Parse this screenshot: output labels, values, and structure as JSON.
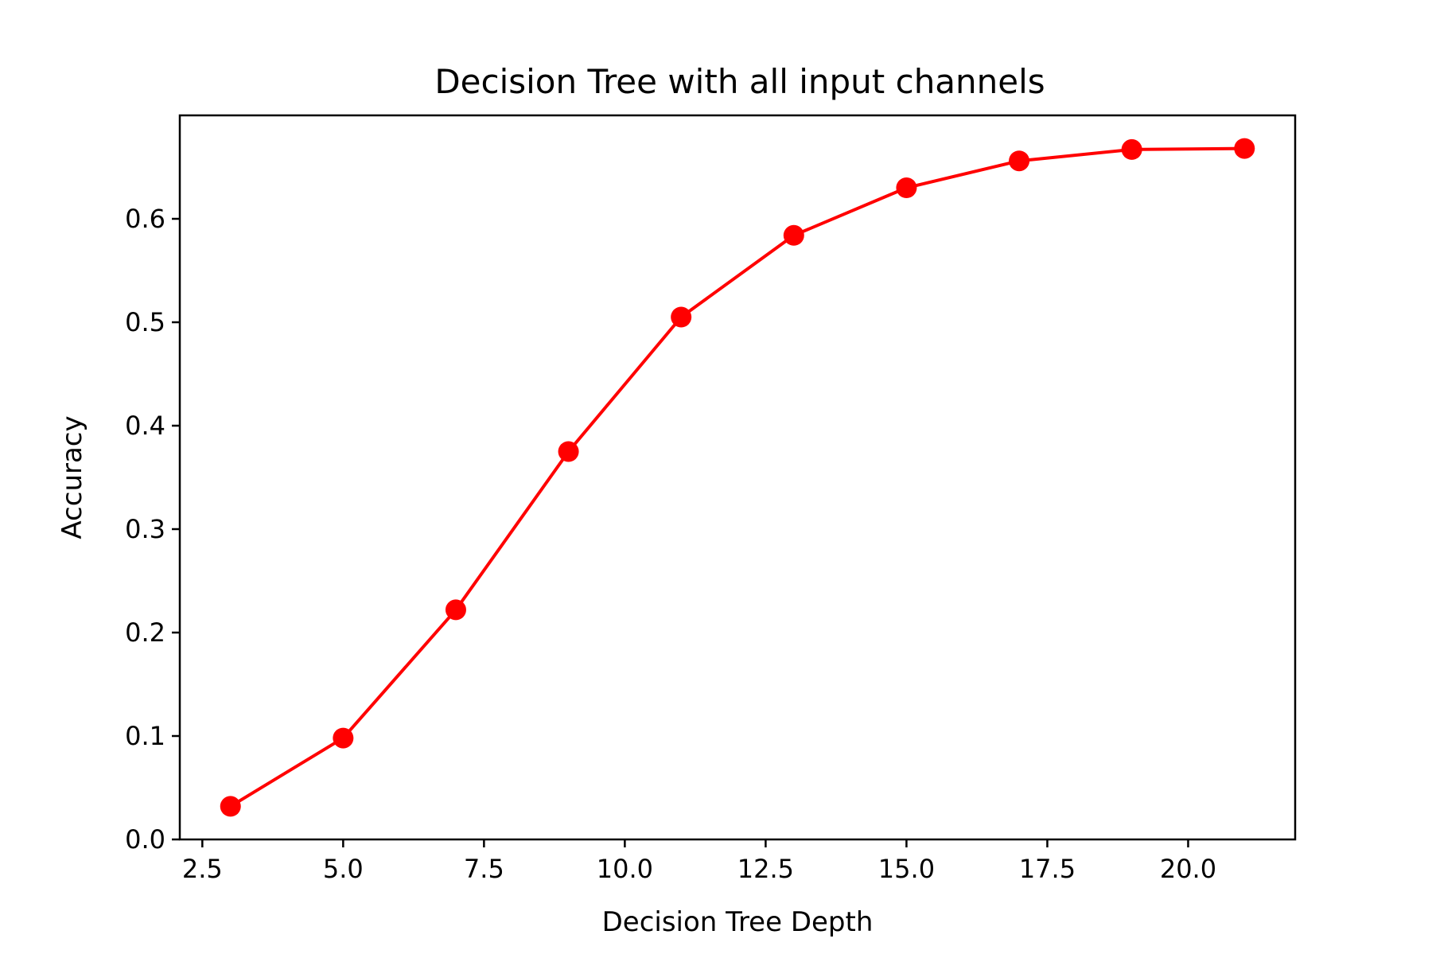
{
  "chart_data": {
    "type": "line",
    "title": "Decision Tree with all input channels",
    "xlabel": "Decision Tree Depth",
    "ylabel": "Accuracy",
    "xlim": [
      2.1,
      21.9
    ],
    "ylim": [
      0.0,
      0.7
    ],
    "xticks": [
      2.5,
      5.0,
      7.5,
      10.0,
      12.5,
      15.0,
      17.5,
      20.0
    ],
    "xtick_labels": [
      "2.5",
      "5.0",
      "7.5",
      "10.0",
      "12.5",
      "15.0",
      "17.5",
      "20.0"
    ],
    "yticks": [
      0.0,
      0.1,
      0.2,
      0.3,
      0.4,
      0.5,
      0.6
    ],
    "ytick_labels": [
      "0.0",
      "0.1",
      "0.2",
      "0.3",
      "0.4",
      "0.5",
      "0.6"
    ],
    "grid": false,
    "series": [
      {
        "color": "#ff0000",
        "marker": "circle",
        "x": [
          3,
          5,
          7,
          9,
          11,
          13,
          15,
          17,
          19,
          21
        ],
        "y": [
          0.032,
          0.098,
          0.222,
          0.375,
          0.505,
          0.584,
          0.63,
          0.656,
          0.667,
          0.668
        ]
      }
    ]
  }
}
